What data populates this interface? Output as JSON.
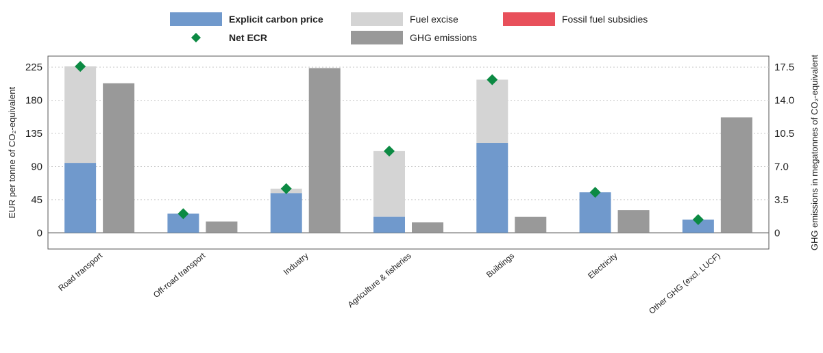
{
  "chart_data": {
    "type": "bar",
    "categories": [
      "Road transport",
      "Off-road transport",
      "Industry",
      "Agriculture & fisheries",
      "Buildings",
      "Electricity",
      "Other GHG (excl. LUCF)"
    ],
    "series": [
      {
        "name": "Explicit carbon price",
        "axis": "left",
        "stack": "ecr",
        "color": "#7099cc",
        "values": [
          95,
          26,
          54,
          22,
          122,
          55,
          18
        ]
      },
      {
        "name": "Fuel excise",
        "axis": "left",
        "stack": "ecr",
        "color": "#d4d4d4",
        "values": [
          131,
          0,
          6,
          89,
          86,
          0,
          0
        ]
      },
      {
        "name": "Fossil fuel subsidies",
        "axis": "left",
        "stack": "ecr",
        "color": "#e8505b",
        "values": [
          0,
          0,
          0,
          0,
          0,
          0,
          0
        ]
      },
      {
        "name": "Net ECR",
        "axis": "left",
        "marker": "diamond",
        "color": "#0c8a43",
        "values": [
          226,
          26,
          60,
          111,
          208,
          55,
          18
        ]
      },
      {
        "name": "GHG emissions",
        "axis": "right",
        "color": "#999999",
        "values": [
          15.8,
          1.2,
          17.4,
          1.1,
          1.7,
          2.4,
          12.2
        ]
      }
    ],
    "legend": {
      "placement": "top",
      "bold": [
        "Explicit carbon price",
        "Net ECR"
      ]
    },
    "ylabel": "EUR per tonne of CO₂-equivalent",
    "y2label": "GHG emissions in megatonnes of CO₂-equivalent",
    "ylim": [
      -22,
      240
    ],
    "y2lim": [
      -1.7111,
      18.6667
    ],
    "yticks": [
      0,
      45,
      90,
      135,
      180,
      225
    ],
    "y2ticks": [
      "0",
      "3.5",
      "7.0",
      "10.5",
      "14.0",
      "17.5"
    ],
    "grid": "horizontal dotted"
  }
}
